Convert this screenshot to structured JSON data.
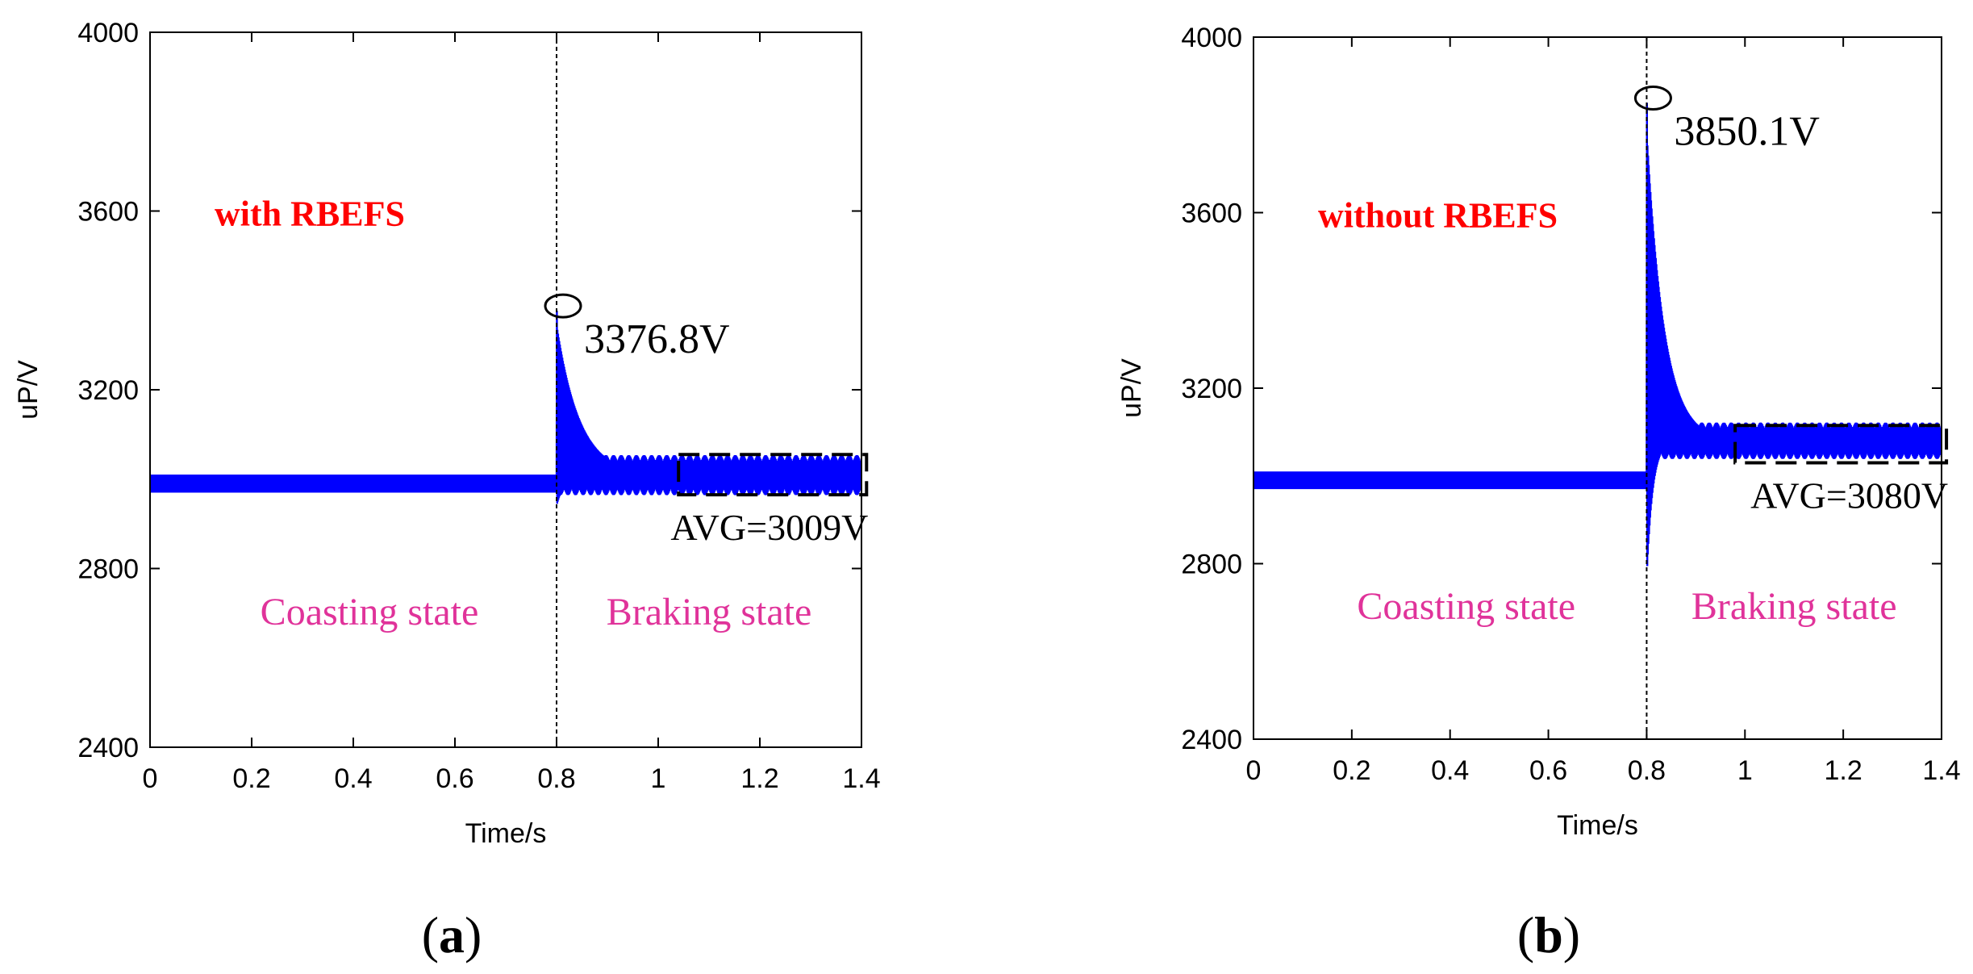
{
  "colors": {
    "signal": "#0000ff",
    "legend": "#ff0000",
    "state": "#e0339a",
    "axis": "#000000"
  },
  "chart_data": [
    {
      "type": "line",
      "panel_label": "(a)",
      "caption": {
        "open": "(",
        "letter": "a",
        "close": ")"
      },
      "legend_text": "with RBEFS",
      "xlabel": "Time/s",
      "ylabel": "uP/V",
      "xlim": [
        0,
        1.4
      ],
      "ylim": [
        2400,
        4000
      ],
      "x_ticks": [
        0,
        0.2,
        0.4,
        0.6,
        0.8,
        1,
        1.2,
        1.4
      ],
      "x_tick_labels": [
        "0",
        "0.2",
        "0.4",
        "0.6",
        "0.8",
        "1",
        "1.2",
        "1.4"
      ],
      "y_ticks": [
        2400,
        2800,
        3200,
        3600,
        4000
      ],
      "y_tick_labels": [
        "2400",
        "2800",
        "3200",
        "3600",
        "4000"
      ],
      "series": [
        {
          "name": "uP",
          "baseline": 2990,
          "baseline_ripple": 20,
          "switch_time": 0.8,
          "peak": 3376.8,
          "dip": 2940,
          "settled_avg": 3009,
          "settled_ripple": 28,
          "decay_tau": 0.045
        }
      ],
      "switch_line_x": 0.8,
      "peak_annotation": {
        "x": 0.8,
        "y": 3376.8,
        "label": "3376.8V"
      },
      "avg_box": {
        "x_range": [
          1.04,
          1.41
        ],
        "y_range": [
          2965,
          3055
        ],
        "label": "AVG=3009V"
      },
      "state_labels": {
        "left": "Coasting state",
        "right": "Braking state"
      }
    },
    {
      "type": "line",
      "panel_label": "(b)",
      "caption": {
        "open": "(",
        "letter": "b",
        "close": ")"
      },
      "legend_text": "without RBEFS",
      "xlabel": "Time/s",
      "ylabel": "uP/V",
      "xlim": [
        0,
        1.4
      ],
      "ylim": [
        2400,
        4000
      ],
      "x_ticks": [
        0,
        0.2,
        0.4,
        0.6,
        0.8,
        1,
        1.2,
        1.4
      ],
      "x_tick_labels": [
        "0",
        "0.2",
        "0.4",
        "0.6",
        "0.8",
        "1",
        "1.2",
        "1.4"
      ],
      "y_ticks": [
        2400,
        2800,
        3200,
        3600,
        4000
      ],
      "y_tick_labels": [
        "2400",
        "2800",
        "3200",
        "3600",
        "4000"
      ],
      "series": [
        {
          "name": "uP",
          "baseline": 2990,
          "baseline_ripple": 20,
          "switch_time": 0.8,
          "peak": 3850.1,
          "dip": 2765,
          "settled_avg": 3080,
          "settled_ripple": 26,
          "decay_tau": 0.035
        }
      ],
      "switch_line_x": 0.8,
      "peak_annotation": {
        "x": 0.8,
        "y": 3850.1,
        "label": "3850.1V"
      },
      "avg_box": {
        "x_range": [
          0.98,
          1.41
        ],
        "y_range": [
          3030,
          3115
        ],
        "label": "AVG=3080V"
      },
      "state_labels": {
        "left": "Coasting state",
        "right": "Braking state"
      }
    }
  ]
}
